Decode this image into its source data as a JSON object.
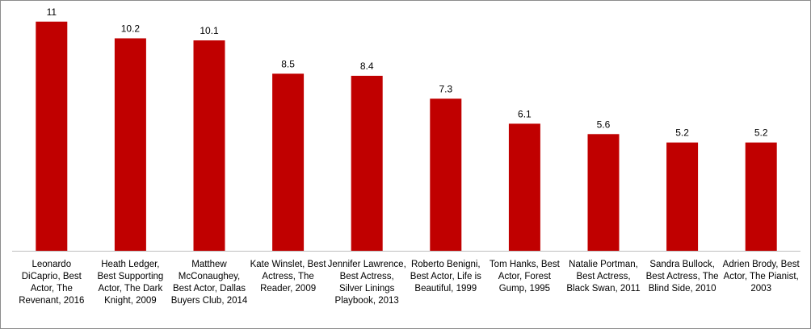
{
  "chart_data": {
    "type": "bar",
    "title": "",
    "xlabel": "",
    "ylabel": "",
    "ylim": [
      0,
      12
    ],
    "grid": false,
    "legend": "none",
    "bar_color": "#c00000",
    "axis_color": "#bfbfbf",
    "categories": [
      "Leonardo DiCaprio, Best Actor, The Revenant, 2016",
      "Heath Ledger, Best Supporting Actor, The Dark Knight, 2009",
      "Matthew McConaughey, Best Actor, Dallas Buyers Club, 2014",
      "Kate Winslet, Best Actress, The Reader, 2009",
      "Jennifer Lawrence, Best Actress, Silver Linings Playbook, 2013",
      "Roberto Benigni, Best Actor, Life is Beautiful, 1999",
      "Tom Hanks, Best Actor, Forest Gump, 1995",
      "Natalie Portman, Best Actress, Black Swan, 2011",
      "Sandra Bullock, Best Actress, The Blind Side, 2010",
      "Adrien Brody, Best Actor, The Pianist, 2003"
    ],
    "values": [
      11,
      10.2,
      10.1,
      8.5,
      8.4,
      7.3,
      6.1,
      5.6,
      5.2,
      5.2
    ],
    "data_labels": [
      "11",
      "10.2",
      "10.1",
      "8.5",
      "8.4",
      "7.3",
      "6.1",
      "5.6",
      "5.2",
      "5.2"
    ]
  }
}
